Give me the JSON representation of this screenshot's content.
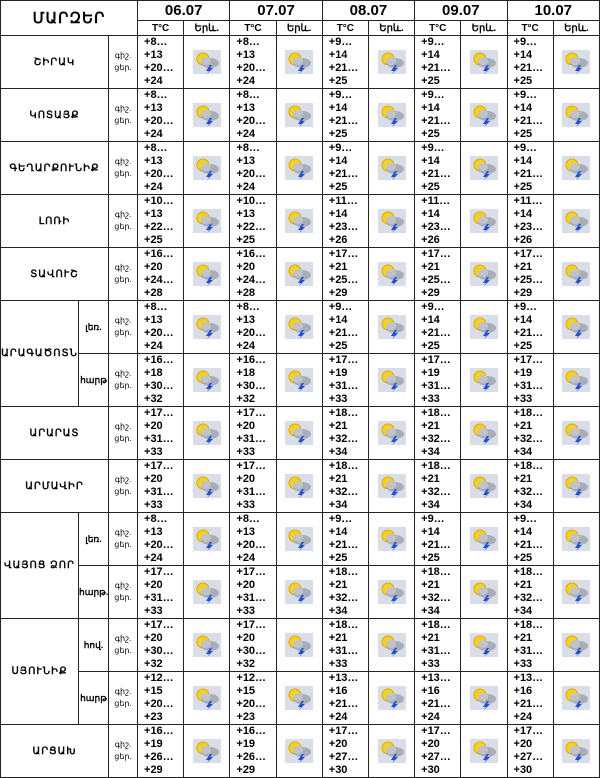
{
  "header": {
    "title": "ՄԱՐԶԵՐ",
    "dates": [
      "06.07",
      "07.07",
      "08.07",
      "09.07",
      "10.07"
    ],
    "temp_label": "T°C",
    "phen_label": "Երև.",
    "night": "գիշ.",
    "day": "ցեր."
  },
  "regions": [
    {
      "name": "ՇԻՐԱԿ",
      "zones": [
        {
          "temps": [
            [
              "+8…+13",
              "+20…+24"
            ],
            [
              "+8…+13",
              "+20…+24"
            ],
            [
              "+9…+14",
              "+21…+25"
            ],
            [
              "+9…+14",
              "+21…+25"
            ],
            [
              "+9…+14",
              "+21…+25"
            ]
          ]
        }
      ]
    },
    {
      "name": "ԿՈՏԱՅՔ",
      "zones": [
        {
          "temps": [
            [
              "+8…+13",
              "+20…+24"
            ],
            [
              "+8…+13",
              "+20…+24"
            ],
            [
              "+9…+14",
              "+21…+25"
            ],
            [
              "+9…+14",
              "+21…+25"
            ],
            [
              "+9…+14",
              "+21…+25"
            ]
          ]
        }
      ]
    },
    {
      "name": "ԳԵՂԱՐՔՈՒՆԻՔ",
      "zones": [
        {
          "temps": [
            [
              "+8…+13",
              "+20…+24"
            ],
            [
              "+8…+13",
              "+20…+24"
            ],
            [
              "+9…+14",
              "+21…+25"
            ],
            [
              "+9…+14",
              "+21…+25"
            ],
            [
              "+9…+14",
              "+21…+25"
            ]
          ]
        }
      ]
    },
    {
      "name": "ԼՈՌԻ",
      "zones": [
        {
          "temps": [
            [
              "+10…+13",
              "+22…+25"
            ],
            [
              "+10…+13",
              "+22…+25"
            ],
            [
              "+11…+14",
              "+23…+26"
            ],
            [
              "+11…+14",
              "+23…+26"
            ],
            [
              "+11…+14",
              "+23…+26"
            ]
          ]
        }
      ]
    },
    {
      "name": "ՏԱՎՈՒՇ",
      "zones": [
        {
          "temps": [
            [
              "+16…+20",
              "+24…+28"
            ],
            [
              "+16…+20",
              "+24…+28"
            ],
            [
              "+17…+21",
              "+25…+29"
            ],
            [
              "+17…+21",
              "+25…+29"
            ],
            [
              "+17…+21",
              "+25…+29"
            ]
          ]
        }
      ]
    },
    {
      "name": "ԱՐԱԳԱԾՈՏՆ",
      "zones": [
        {
          "label": "լեռ.",
          "temps": [
            [
              "+8…+13",
              "+20…+24"
            ],
            [
              "+8…+13",
              "+20…+24"
            ],
            [
              "+9…+14",
              "+21…+25"
            ],
            [
              "+9…+14",
              "+21…+25"
            ],
            [
              "+9…+14",
              "+21…+25"
            ]
          ]
        },
        {
          "label": "հարթ",
          "temps": [
            [
              "+16…+18",
              "+30…+32"
            ],
            [
              "+16…+18",
              "+30…+32"
            ],
            [
              "+17…+19",
              "+31…+33"
            ],
            [
              "+17…+19",
              "+31…+33"
            ],
            [
              "+17…+19",
              "+31…+33"
            ]
          ]
        }
      ]
    },
    {
      "name": "ԱՐԱՐԱՏ",
      "zones": [
        {
          "temps": [
            [
              "+17…+20",
              "+31…+33"
            ],
            [
              "+17…+20",
              "+31…+33"
            ],
            [
              "+18…+21",
              "+32…+34"
            ],
            [
              "+18…+21",
              "+32…+34"
            ],
            [
              "+18…+21",
              "+32…+34"
            ]
          ]
        }
      ]
    },
    {
      "name": "ԱՐՄԱՎԻՐ",
      "zones": [
        {
          "temps": [
            [
              "+17…+20",
              "+31…+33"
            ],
            [
              "+17…+20",
              "+31…+33"
            ],
            [
              "+18…+21",
              "+32…+34"
            ],
            [
              "+18…+21",
              "+32…+34"
            ],
            [
              "+18…+21",
              "+32…+34"
            ]
          ]
        }
      ]
    },
    {
      "name": "ՎԱՅՈՑ ՁՈՐ",
      "zones": [
        {
          "label": "լեռ.",
          "temps": [
            [
              "+8…+13",
              "+20…+24"
            ],
            [
              "+8…+13",
              "+20…+24"
            ],
            [
              "+9…+14",
              "+21…+25"
            ],
            [
              "+9…+14",
              "+21…+25"
            ],
            [
              "+9…+14",
              "+21…+25"
            ]
          ]
        },
        {
          "label": "հարթ.",
          "temps": [
            [
              "+17…+20",
              "+31…+33"
            ],
            [
              "+17…+20",
              "+31…+33"
            ],
            [
              "+18…+21",
              "+32…+34"
            ],
            [
              "+18…+21",
              "+32…+34"
            ],
            [
              "+18…+21",
              "+32…+34"
            ]
          ]
        }
      ]
    },
    {
      "name": "ՍՅՈՒՆԻՔ",
      "zones": [
        {
          "label": "հով.",
          "temps": [
            [
              "+17…+20",
              "+30…+32"
            ],
            [
              "+17…+20",
              "+30…+32"
            ],
            [
              "+18…+21",
              "+31…+33"
            ],
            [
              "+18…+21",
              "+31…+33"
            ],
            [
              "+18…+21",
              "+31…+33"
            ]
          ]
        },
        {
          "label": "հարթ",
          "temps": [
            [
              "+12…+15",
              "+20…+23"
            ],
            [
              "+12…+15",
              "+20…+23"
            ],
            [
              "+13…+16",
              "+21…+24"
            ],
            [
              "+13…+16",
              "+21…+24"
            ],
            [
              "+13…+16",
              "+21…+24"
            ]
          ]
        }
      ]
    },
    {
      "name": "ԱՐՑԱԽ",
      "zones": [
        {
          "temps": [
            [
              "+16…+19",
              "+26…+29"
            ],
            [
              "+16…+19",
              "+26…+29"
            ],
            [
              "+17…+20",
              "+27…+30"
            ],
            [
              "+17…+20",
              "+27…+30"
            ],
            [
              "+17…+20",
              "+27…+30"
            ]
          ]
        }
      ]
    }
  ]
}
